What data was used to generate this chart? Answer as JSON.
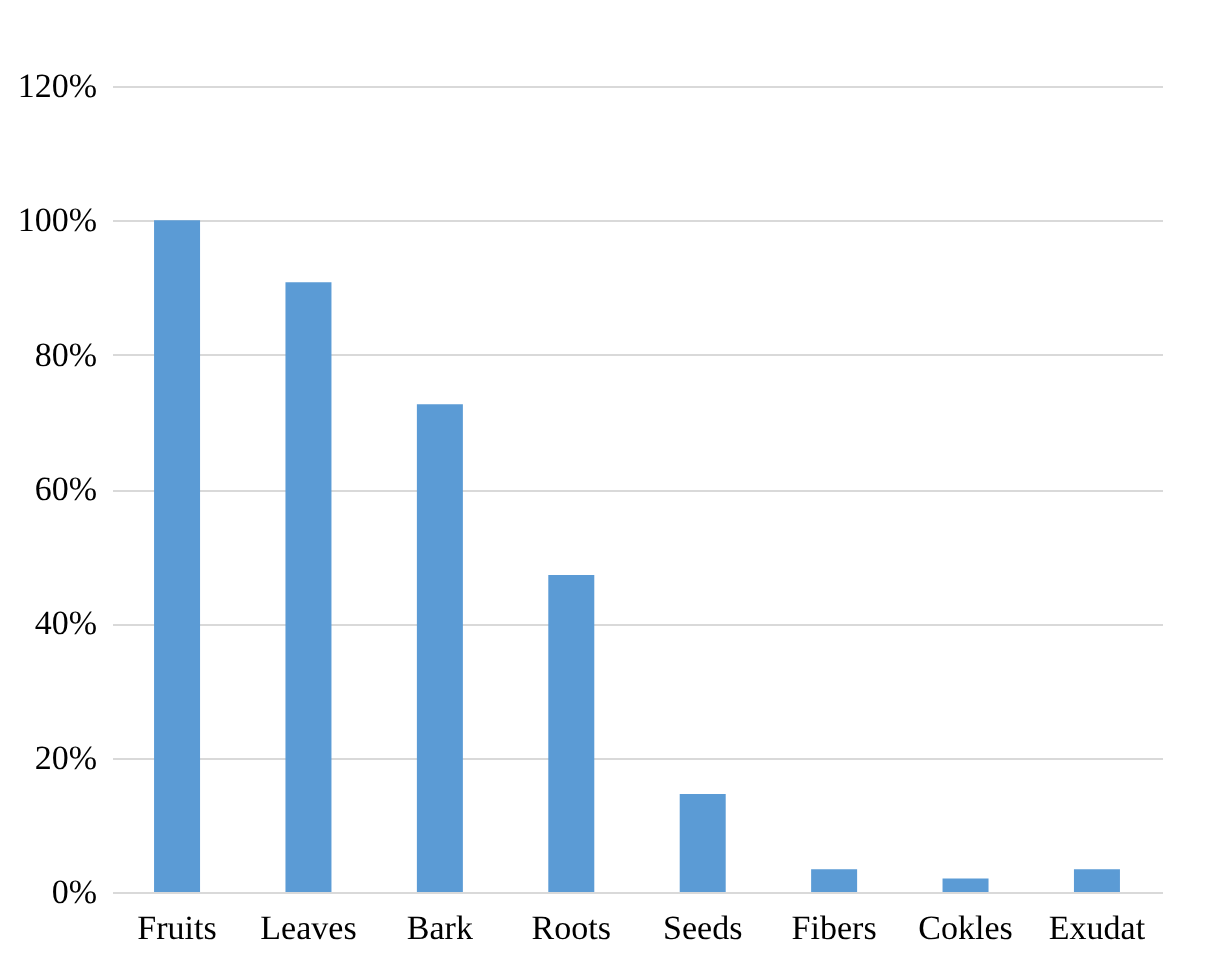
{
  "chart_data": {
    "type": "bar",
    "categories": [
      "Fruits",
      "Leaves",
      "Bark",
      "Roots",
      "Seeds",
      "Fibers",
      "Cokles",
      "Exudat"
    ],
    "values": [
      100,
      90.8,
      72.6,
      47.2,
      14.6,
      3.4,
      2.0,
      3.4
    ],
    "color": "#5b9bd5",
    "ylim": [
      0,
      120
    ],
    "yticks": [
      {
        "value": 0,
        "label": "0%"
      },
      {
        "value": 20,
        "label": "20%"
      },
      {
        "value": 40,
        "label": "40%"
      },
      {
        "value": 60,
        "label": "60%"
      },
      {
        "value": 80,
        "label": "80%"
      },
      {
        "value": 100,
        "label": "100%"
      },
      {
        "value": 120,
        "label": "120%"
      }
    ],
    "grid": "y"
  }
}
